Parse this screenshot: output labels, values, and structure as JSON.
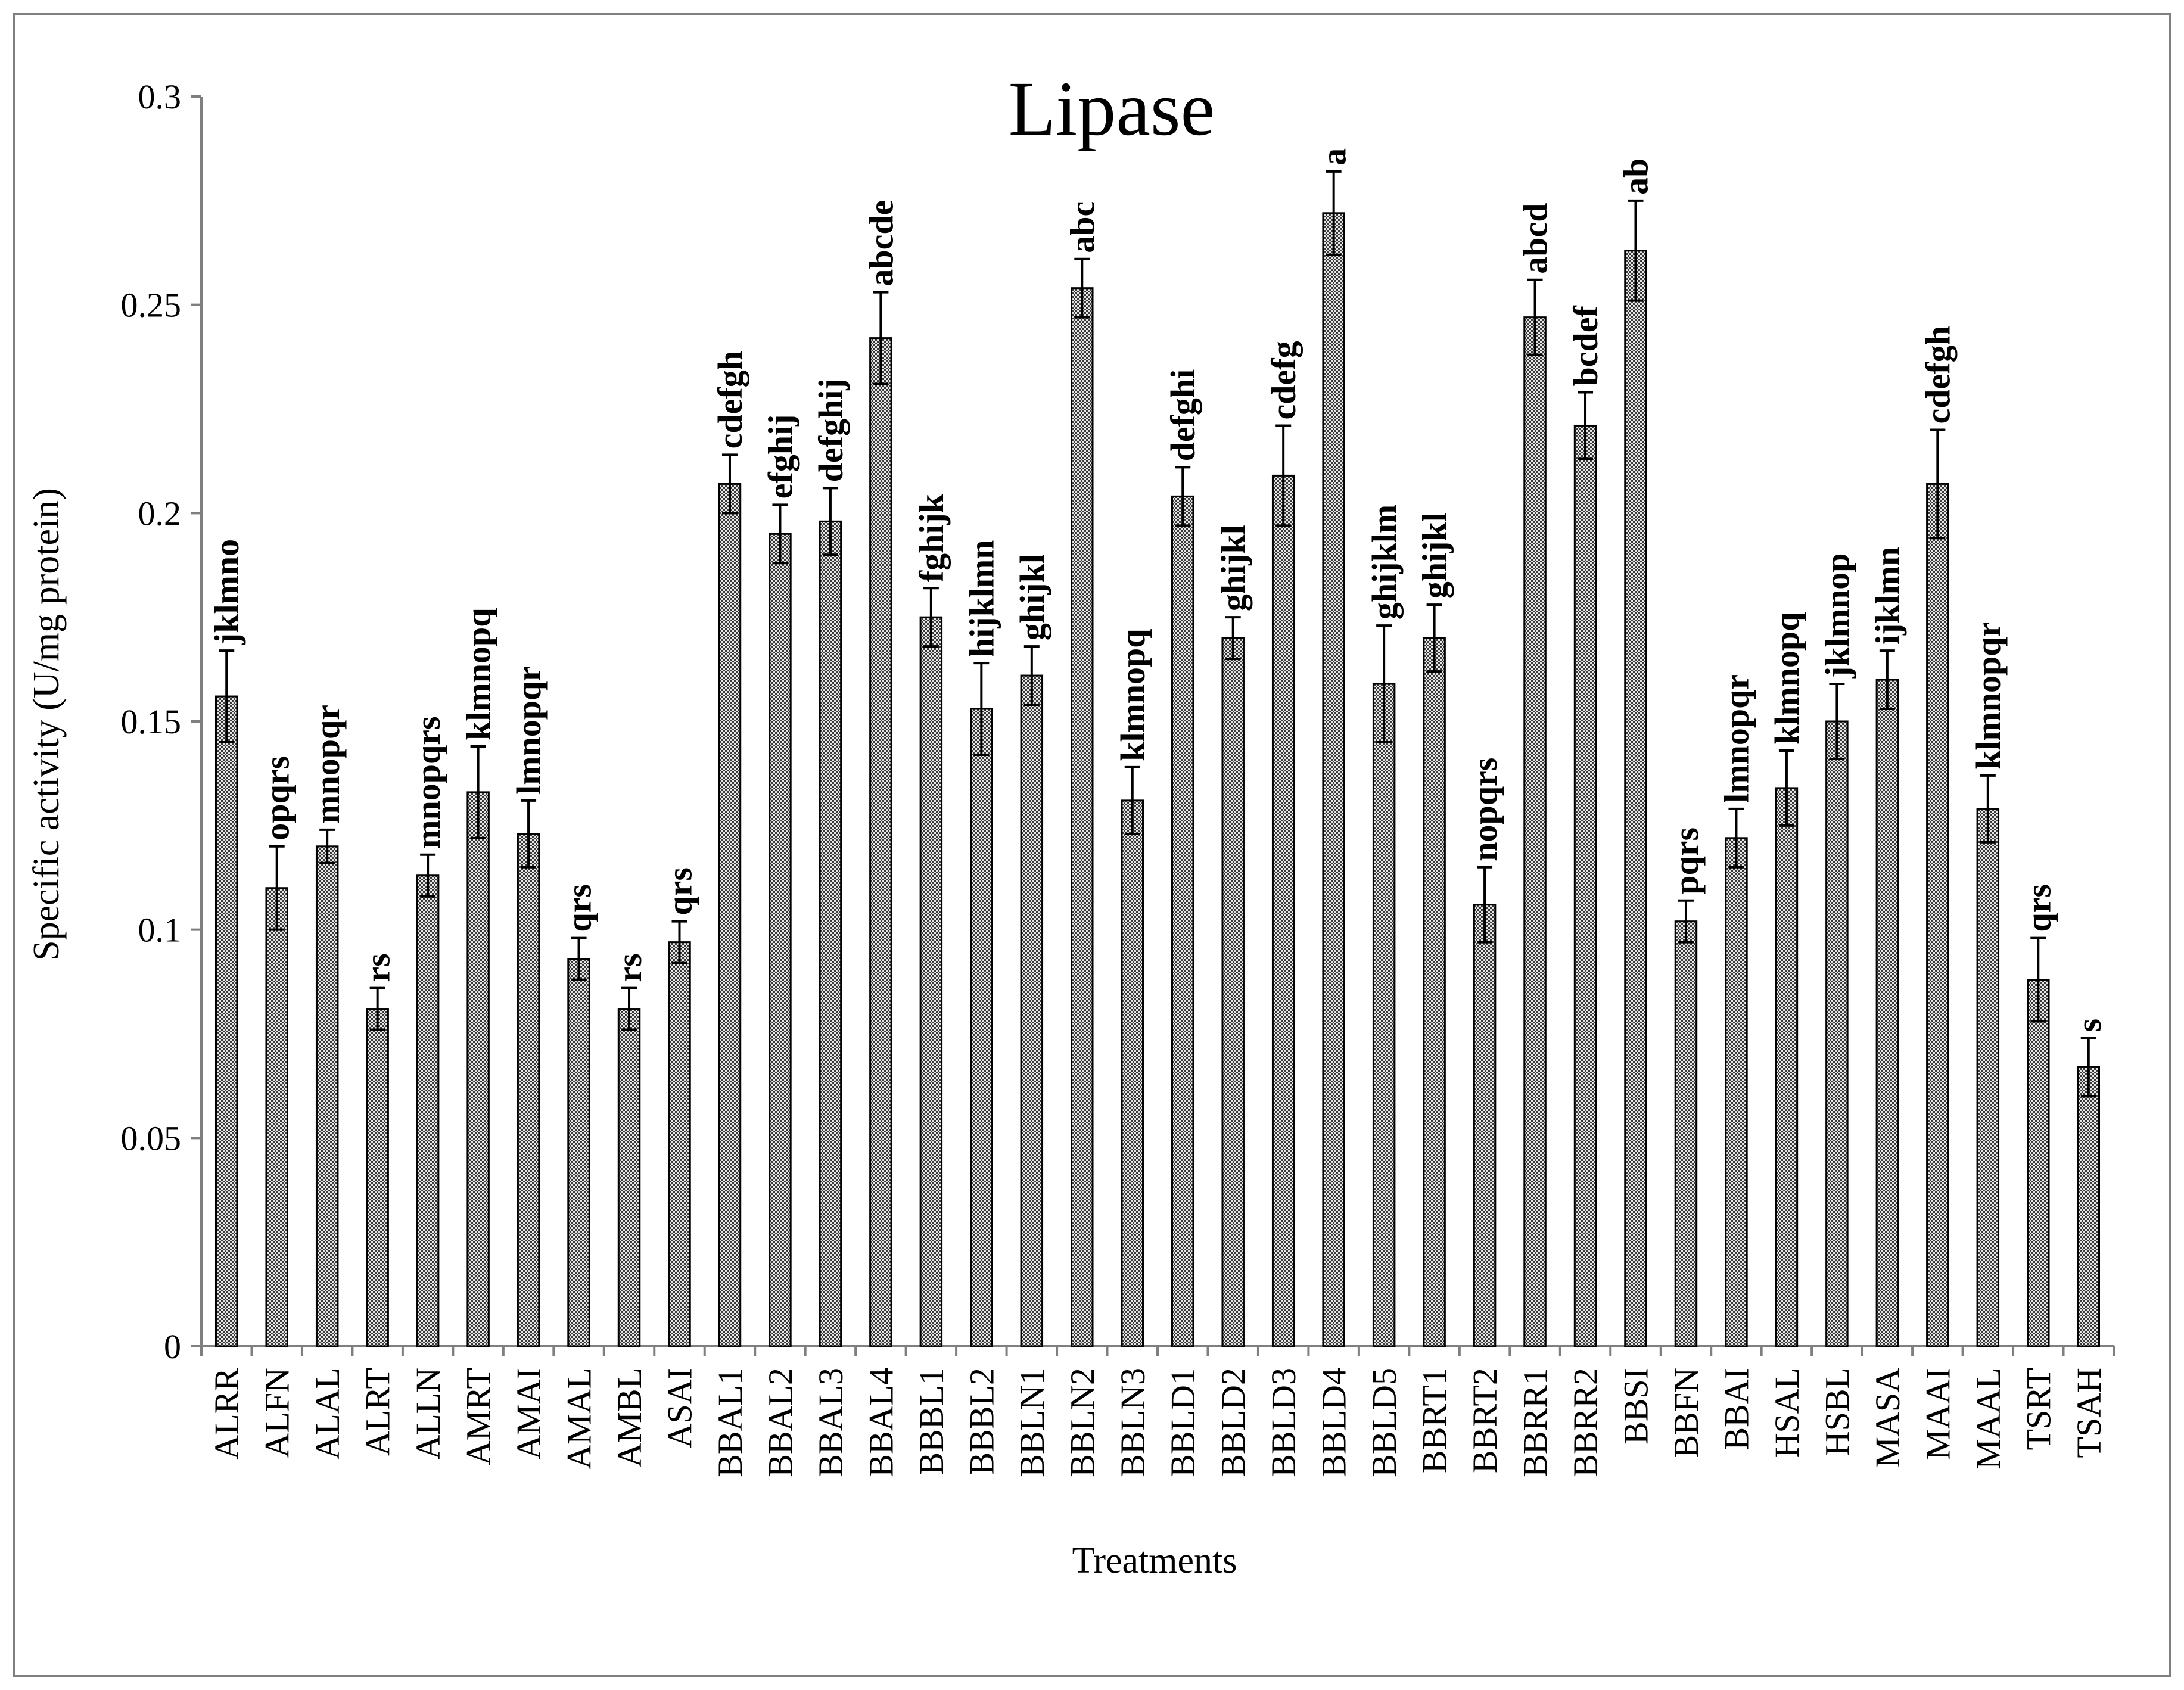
{
  "chart_data": {
    "type": "bar",
    "title": "Lipase",
    "xlabel": "Treatments",
    "ylabel": "Specific activity (U/mg protein)",
    "ylim": [
      0,
      0.3
    ],
    "yticks": [
      "0",
      "0.05",
      "0.1",
      "0.15",
      "0.2",
      "0.25",
      "0.3"
    ],
    "grid": false,
    "legend": "none",
    "bar_fill": "cross-hatched grey",
    "categories": [
      "ALRR",
      "ALFN",
      "ALAL",
      "ALRT",
      "ALLN",
      "AMRT",
      "AMAI",
      "AMAL",
      "AMBL",
      "ASAI",
      "BBAL1",
      "BBAL2",
      "BBAL3",
      "BBAL4",
      "BBBL1",
      "BBBL2",
      "BBLN1",
      "BBLN2",
      "BBLN3",
      "BBLD1",
      "BBLD2",
      "BBLD3",
      "BBLD4",
      "BBLD5",
      "BBRT1",
      "BBRT2",
      "BBRR1",
      "BBRR2",
      "BBSI",
      "BBFN",
      "BBAI",
      "HSAL",
      "HSBL",
      "MASA",
      "MAAI",
      "MAAL",
      "TSRT",
      "TSAH"
    ],
    "values": [
      0.156,
      0.11,
      0.12,
      0.081,
      0.113,
      0.133,
      0.123,
      0.093,
      0.081,
      0.097,
      0.207,
      0.195,
      0.198,
      0.242,
      0.175,
      0.153,
      0.161,
      0.254,
      0.131,
      0.204,
      0.17,
      0.209,
      0.272,
      0.159,
      0.17,
      0.106,
      0.247,
      0.221,
      0.263,
      0.102,
      0.122,
      0.134,
      0.15,
      0.16,
      0.207,
      0.129,
      0.088,
      0.067
    ],
    "errors": [
      0.011,
      0.01,
      0.004,
      0.005,
      0.005,
      0.011,
      0.008,
      0.005,
      0.005,
      0.005,
      0.007,
      0.007,
      0.008,
      0.011,
      0.007,
      0.011,
      0.007,
      0.007,
      0.008,
      0.007,
      0.005,
      0.012,
      0.01,
      0.014,
      0.008,
      0.009,
      0.009,
      0.008,
      0.012,
      0.005,
      0.007,
      0.009,
      0.009,
      0.007,
      0.013,
      0.008,
      0.01,
      0.007
    ],
    "significance_labels": [
      "jklmno",
      "opqrs",
      "mnopqr",
      "rs",
      "mnopqrs",
      "klmnopq",
      "lmnopqr",
      "qrs",
      "rs",
      "qrs",
      "cdefgh",
      "efghij",
      "defghij",
      "abcde",
      "fghijk",
      "hijklmn",
      "ghijkl",
      "abc",
      "klmnopq",
      "defghi",
      "ghijkl",
      "cdefg",
      "a",
      "ghijklm",
      "ghijkl",
      "nopqrs",
      "abcd",
      "bcdef",
      "ab",
      "pqrs",
      "lmnopqr",
      "klmnopq",
      "jklmnop",
      "ijklmn",
      "cdefgh",
      "klmnopqr",
      "qrs",
      "s"
    ]
  },
  "colors": {
    "bar_fill": "#e6e6e6",
    "bar_hatch": "#2b2b2b",
    "axis": "#7f7f7f",
    "frame_border": "#7f7f7f",
    "error_bar": "#000000"
  }
}
